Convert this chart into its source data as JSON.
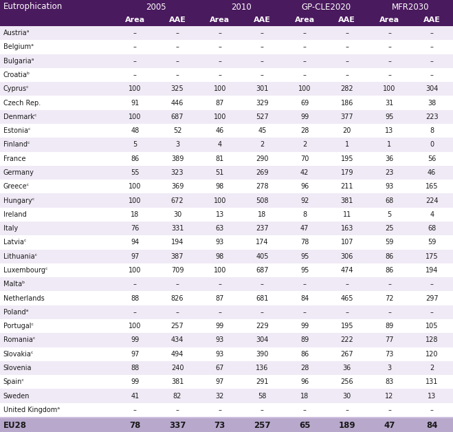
{
  "title_row_labels": [
    "Eutrophication",
    "2005",
    "2010",
    "GP-CLE2020",
    "MFR2030"
  ],
  "sub_header": [
    "",
    "Area",
    "AAE",
    "Area",
    "AAE",
    "Area",
    "AAE",
    "Area",
    "AAE"
  ],
  "rows": [
    [
      "Austriaᵃ",
      "–",
      "–",
      "–",
      "–",
      "–",
      "–",
      "–",
      "–"
    ],
    [
      "Belgiumᵃ",
      "–",
      "–",
      "–",
      "–",
      "–",
      "–",
      "–",
      "–"
    ],
    [
      "Bulgariaᵃ",
      "–",
      "–",
      "–",
      "–",
      "–",
      "–",
      "–",
      "–"
    ],
    [
      "Croatiaᵇ",
      "–",
      "–",
      "–",
      "–",
      "–",
      "–",
      "–",
      "–"
    ],
    [
      "Cyprusᶜ",
      "100",
      "325",
      "100",
      "301",
      "100",
      "282",
      "100",
      "304"
    ],
    [
      "Czech Rep.",
      "91",
      "446",
      "87",
      "329",
      "69",
      "186",
      "31",
      "38"
    ],
    [
      "Denmarkᶜ",
      "100",
      "687",
      "100",
      "527",
      "99",
      "377",
      "95",
      "223"
    ],
    [
      "Estoniaᶜ",
      "48",
      "52",
      "46",
      "45",
      "28",
      "20",
      "13",
      "8"
    ],
    [
      "Finlandᶜ",
      "5",
      "3",
      "4",
      "2",
      "2",
      "1",
      "1",
      "0"
    ],
    [
      "France",
      "86",
      "389",
      "81",
      "290",
      "70",
      "195",
      "36",
      "56"
    ],
    [
      "Germany",
      "55",
      "323",
      "51",
      "269",
      "42",
      "179",
      "23",
      "46"
    ],
    [
      "Greeceᶜ",
      "100",
      "369",
      "98",
      "278",
      "96",
      "211",
      "93",
      "165"
    ],
    [
      "Hungaryᶜ",
      "100",
      "672",
      "100",
      "508",
      "92",
      "381",
      "68",
      "224"
    ],
    [
      "Ireland",
      "18",
      "30",
      "13",
      "18",
      "8",
      "11",
      "5",
      "4"
    ],
    [
      "Italy",
      "76",
      "331",
      "63",
      "237",
      "47",
      "163",
      "25",
      "68"
    ],
    [
      "Latviaᶜ",
      "94",
      "194",
      "93",
      "174",
      "78",
      "107",
      "59",
      "59"
    ],
    [
      "Lithuaniaᶜ",
      "97",
      "387",
      "98",
      "405",
      "95",
      "306",
      "86",
      "175"
    ],
    [
      "Luxembourgᶜ",
      "100",
      "709",
      "100",
      "687",
      "95",
      "474",
      "86",
      "194"
    ],
    [
      "Maltaᵇ",
      "–",
      "–",
      "–",
      "–",
      "–",
      "–",
      "–",
      "–"
    ],
    [
      "Netherlands",
      "88",
      "826",
      "87",
      "681",
      "84",
      "465",
      "72",
      "297"
    ],
    [
      "Polandᵃ",
      "–",
      "–",
      "–",
      "–",
      "–",
      "–",
      "–",
      "–"
    ],
    [
      "Portugalᶜ",
      "100",
      "257",
      "99",
      "229",
      "99",
      "195",
      "89",
      "105"
    ],
    [
      "Romaniaᶜ",
      "99",
      "434",
      "93",
      "304",
      "89",
      "222",
      "77",
      "128"
    ],
    [
      "Slovakiaᶜ",
      "97",
      "494",
      "93",
      "390",
      "86",
      "267",
      "73",
      "120"
    ],
    [
      "Slovenia",
      "88",
      "240",
      "67",
      "136",
      "28",
      "36",
      "3",
      "2"
    ],
    [
      "Spainᶜ",
      "99",
      "381",
      "97",
      "291",
      "96",
      "256",
      "83",
      "131"
    ],
    [
      "Sweden",
      "41",
      "82",
      "32",
      "58",
      "18",
      "30",
      "12",
      "13"
    ],
    [
      "United Kingdomᵃ",
      "–",
      "–",
      "–",
      "–",
      "–",
      "–",
      "–",
      "–"
    ]
  ],
  "footer_row": [
    "EU28",
    "78",
    "337",
    "73",
    "257",
    "65",
    "189",
    "47",
    "84"
  ],
  "header_bg": "#4a1a5e",
  "header_text": "#ffffff",
  "row_bg_light": "#f0eaf6",
  "row_bg_dark": "#ffffff",
  "footer_bg": "#b8a8cc",
  "footer_text": "#1a1a1a",
  "col_props": [
    0.22,
    0.082,
    0.082,
    0.082,
    0.082,
    0.082,
    0.082,
    0.082,
    0.082
  ]
}
